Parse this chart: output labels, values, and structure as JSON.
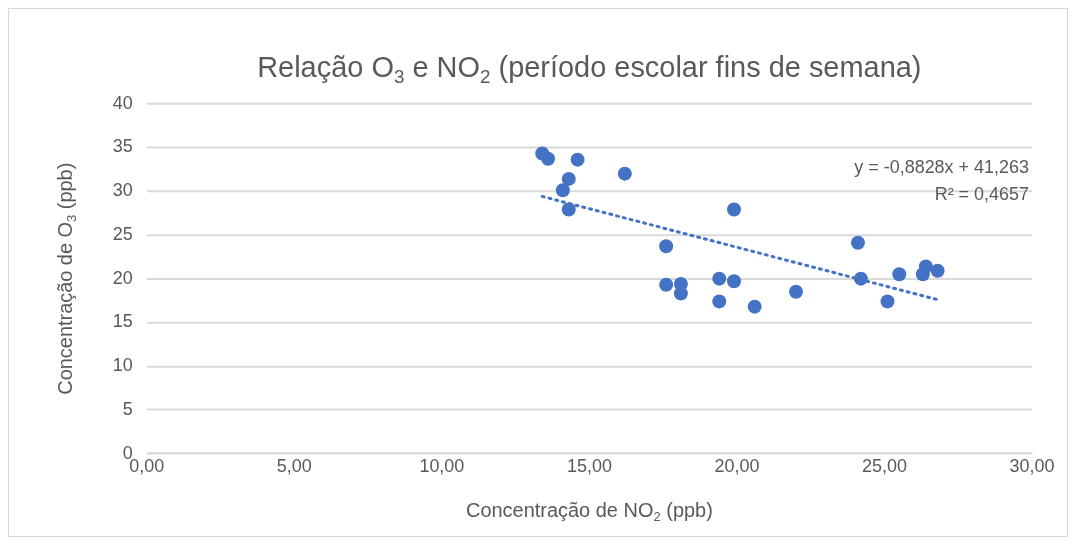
{
  "chart_data": {
    "type": "scatter",
    "title": "Relação O$_{3}$ e NO$_{2}$ (período escolar fins de semana)",
    "xlabel": "Concentração de NO$_{2}$ (ppb)",
    "ylabel": "Concentração de O$_{3}$ (ppb)",
    "x": [
      13.4,
      13.6,
      14.6,
      14.3,
      14.1,
      14.3,
      16.2,
      17.6,
      17.6,
      18.1,
      18.1,
      19.4,
      19.9,
      19.4,
      19.9,
      20.6,
      22.0,
      24.1,
      24.2,
      25.5,
      25.1,
      26.3,
      26.4,
      26.8
    ],
    "series": [
      {
        "color": "#4472c4",
        "values": [
          34.3,
          33.7,
          33.6,
          31.4,
          30.1,
          27.9,
          32.0,
          23.7,
          19.3,
          19.4,
          18.3,
          20.0,
          19.7,
          17.4,
          27.9,
          16.8,
          18.5,
          24.1,
          20.0,
          20.5,
          17.4,
          20.5,
          21.4,
          20.9
        ]
      },
      {
        "type": "line",
        "color": "#4472c4",
        "line_style": "dotted",
        "marker": "none",
        "x": [
          13.4,
          26.8
        ],
        "values": [
          29.4,
          17.6
        ]
      }
    ],
    "xlim": [
      0,
      30
    ],
    "xticks": [
      {
        "value": 0,
        "label": "0,00"
      },
      {
        "value": 5,
        "label": "5,00"
      },
      {
        "value": 10,
        "label": "10,00"
      },
      {
        "value": 15,
        "label": "15,00"
      },
      {
        "value": 20,
        "label": "20,00"
      },
      {
        "value": 25,
        "label": "25,00"
      },
      {
        "value": 30,
        "label": "30,00"
      }
    ],
    "ylim": [
      0,
      40
    ],
    "yticks": [
      0,
      5,
      10,
      15,
      20,
      25,
      30,
      35,
      40
    ],
    "annotations": [
      "y = -0,8828x + 41,263",
      "R² = 0,4657"
    ],
    "grid": "y",
    "legend": false,
    "marker": "circle"
  }
}
